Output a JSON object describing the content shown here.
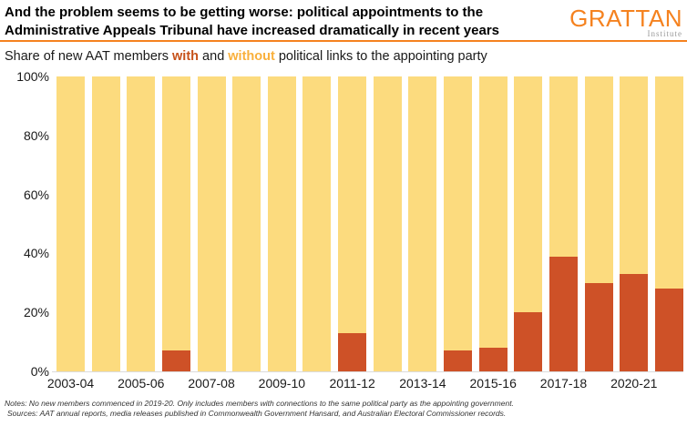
{
  "header": {
    "title_line1": "And the problem seems to be getting worse: political appointments to the",
    "title_line2": "Administrative Appeals Tribunal have increased dramatically in recent years",
    "logo_text": "GRATTAN",
    "logo_subtext": "Institute"
  },
  "subtitle": {
    "prefix": "Share of new AAT members ",
    "with_word": "with",
    "connector": " and ",
    "without_word": "without",
    "suffix": " political links to the appointing party"
  },
  "colors": {
    "with_links": "#CE5127",
    "without_links": "#FCDB7E",
    "with_text": "#C65119",
    "without_text": "#F9B03C",
    "accent_orange": "#F5821F",
    "axis_line": "#DCDCDC"
  },
  "chart_data": {
    "type": "bar",
    "stacked": true,
    "unit": "%",
    "ylim": [
      0,
      100
    ],
    "grid": false,
    "legend": "in subtitle (with = dark orange, without = light yellow)",
    "categories": [
      "2003-04",
      "2004-05",
      "2005-06",
      "2006-07",
      "2007-08",
      "2008-09",
      "2009-10",
      "2010-11",
      "2011-12",
      "2012-13",
      "2013-14",
      "2014-15",
      "2015-16",
      "2016-17",
      "2017-18",
      "2018-19",
      "2020-21",
      "2021-22"
    ],
    "series": [
      {
        "name": "with political links",
        "values": [
          0,
          0,
          0,
          7,
          0,
          0,
          0,
          0,
          13,
          0,
          0,
          7,
          8,
          20,
          39,
          30,
          33,
          28
        ]
      },
      {
        "name": "without political links",
        "values": [
          100,
          100,
          100,
          93,
          100,
          100,
          100,
          100,
          87,
          100,
          100,
          93,
          92,
          80,
          61,
          70,
          67,
          72
        ]
      }
    ],
    "y_ticks": [
      {
        "value": 100,
        "label": "100%"
      },
      {
        "value": 80,
        "label": "80%"
      },
      {
        "value": 60,
        "label": "60%"
      },
      {
        "value": 40,
        "label": "40%"
      },
      {
        "value": 20,
        "label": "20%"
      },
      {
        "value": 0,
        "label": "0%"
      }
    ],
    "x_ticks": [
      {
        "bar_index": 0,
        "label": "2003-04"
      },
      {
        "bar_index": 2,
        "label": "2005-06"
      },
      {
        "bar_index": 4,
        "label": "2007-08"
      },
      {
        "bar_index": 6,
        "label": "2009-10"
      },
      {
        "bar_index": 8,
        "label": "2011-12"
      },
      {
        "bar_index": 10,
        "label": "2013-14"
      },
      {
        "bar_index": 12,
        "label": "2015-16"
      },
      {
        "bar_index": 14,
        "label": "2017-18"
      },
      {
        "bar_index": 16,
        "label": "2020-21"
      }
    ]
  },
  "footer": {
    "notes": "Notes: No new members commenced in 2019-20. Only includes members with connections to the same political party as the appointing government.",
    "sources": "Sources: AAT annual reports, media releases published in Commonwealth Government Hansard, and Australian Electoral Commissioner records."
  }
}
